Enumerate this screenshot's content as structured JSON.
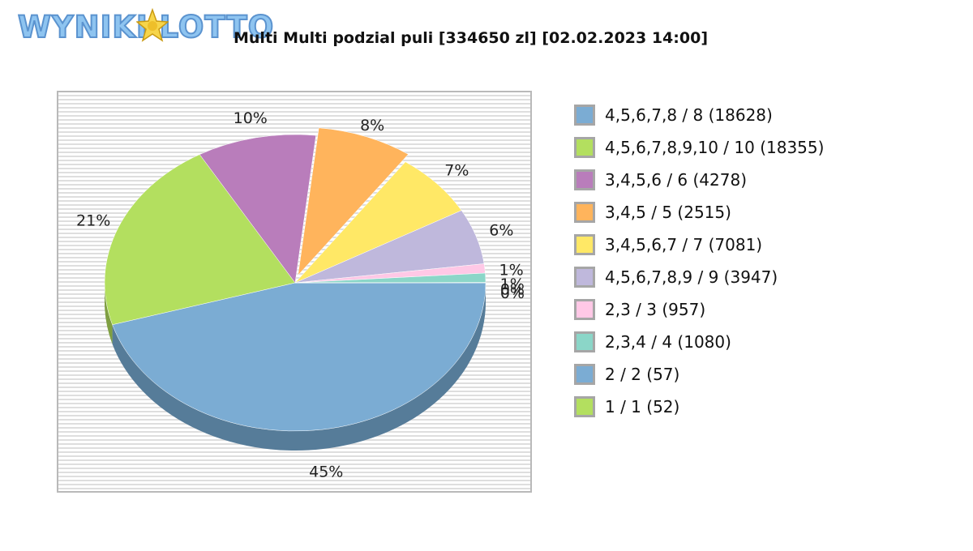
{
  "logo": {
    "text": "WYNIKI LOTTO",
    "star_text": ""
  },
  "chart_data": {
    "type": "pie",
    "title": "Multi Multi podzial puli [334650 zl] [02.02.2023 14:00]",
    "slices": [
      {
        "label": "4,5,6,7,8 / 8 (18628)",
        "value": 45,
        "pct": "45%",
        "color": "#7bacd3",
        "side": "#567c99"
      },
      {
        "label": "4,5,6,7,8,9,10 / 10 (18355)",
        "value": 21,
        "pct": "21%",
        "color": "#b3df5f",
        "side": "#7f9f42"
      },
      {
        "label": "3,4,5,6 / 6 (4278)",
        "value": 10,
        "pct": "10%",
        "color": "#b97dbb",
        "side": "#865a87"
      },
      {
        "label": "3,4,5 / 5 (2515)",
        "value": 8,
        "pct": "8%",
        "color": "#ffb45c",
        "side": "#b9823f"
      },
      {
        "label": "3,4,5,6,7 / 7 (7081)",
        "value": 7,
        "pct": "7%",
        "color": "#ffe866",
        "side": "#b9a94a"
      },
      {
        "label": "4,5,6,7,8,9 / 9 (3947)",
        "value": 6,
        "pct": "6%",
        "color": "#bfb8dc",
        "side": "#8c879f"
      },
      {
        "label": "2,3 / 3 (957)",
        "value": 1,
        "pct": "1%",
        "color": "#ffc8e6",
        "side": "#b994a8"
      },
      {
        "label": "2,3,4 / 4 (1080)",
        "value": 1,
        "pct": "1%",
        "color": "#8bd6c8",
        "side": "#629c92"
      },
      {
        "label": "2 / 2 (57)",
        "value": 0.017,
        "pct": "0%",
        "color": "#7bacd3",
        "side": "#567c99"
      },
      {
        "label": "1 / 1 (52)",
        "value": 0.016,
        "pct": "0%",
        "color": "#b3df5f",
        "side": "#7f9f42"
      }
    ],
    "legend_position": "right"
  }
}
